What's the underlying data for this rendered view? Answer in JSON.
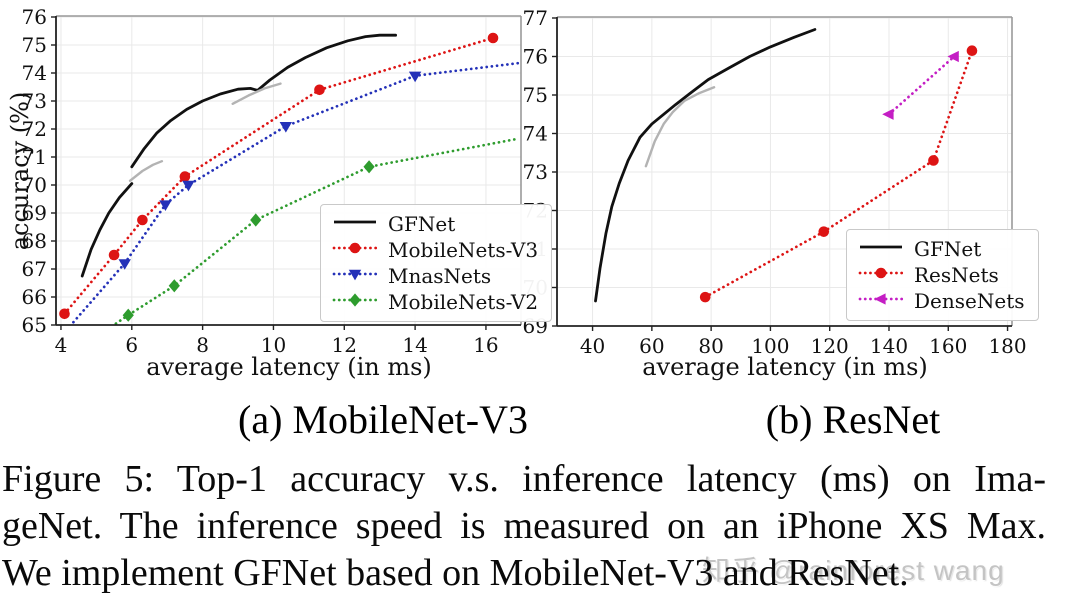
{
  "watermark": {
    "text": "知乎 @rainforest wang",
    "color": "#c4c4c4"
  },
  "caption": {
    "lines": [
      "Figure 5:  Top-1 accuracy v.s. inference latency (ms) on Ima-",
      "geNet. The inference speed is measured on an iPhone XS Max.",
      "We implement GFNet based on MobileNet-V3 and ResNet."
    ]
  },
  "chart_data": [
    {
      "type": "line",
      "title": "(a) MobileNet-V3",
      "xlabel": "average latency (in ms)",
      "ylabel": "accuracy (%)",
      "xlim": [
        3.86,
        16.99
      ],
      "ylim": [
        65,
        76
      ],
      "xticks": [
        4,
        6,
        8,
        10,
        12,
        14,
        16
      ],
      "yticks": [
        65,
        66,
        67,
        68,
        69,
        70,
        71,
        72,
        73,
        74,
        75,
        76
      ],
      "grid": true,
      "legend_position": "lower right",
      "series": [
        {
          "name": "GFNet",
          "color": "#111111",
          "line": "solid",
          "width": 2.8,
          "marker": "none",
          "in_legend": true,
          "segments": [
            [
              [
                4.6,
                66.75
              ],
              [
                4.85,
                67.7
              ],
              [
                5.1,
                68.4
              ],
              [
                5.35,
                69.0
              ],
              [
                5.65,
                69.55
              ],
              [
                6.0,
                70.05
              ]
            ],
            [
              [
                6.0,
                70.65
              ],
              [
                6.35,
                71.3
              ],
              [
                6.7,
                71.85
              ],
              [
                7.1,
                72.3
              ],
              [
                7.55,
                72.7
              ],
              [
                8.0,
                73.0
              ],
              [
                8.5,
                73.25
              ],
              [
                9.0,
                73.42
              ],
              [
                9.35,
                73.45
              ],
              [
                9.55,
                73.38
              ],
              [
                9.9,
                73.75
              ],
              [
                10.4,
                74.2
              ],
              [
                10.9,
                74.55
              ],
              [
                11.5,
                74.9
              ],
              [
                12.1,
                75.15
              ],
              [
                12.6,
                75.3
              ],
              [
                13.0,
                75.35
              ],
              [
                13.45,
                75.35
              ]
            ]
          ],
          "markers": []
        },
        {
          "name": "unlabeled-gray-curve",
          "color": "#b3b3b3",
          "line": "solid",
          "width": 2.4,
          "marker": "none",
          "in_legend": false,
          "segments": [
            [
              [
                5.95,
                70.15
              ],
              [
                6.3,
                70.5
              ],
              [
                6.6,
                70.72
              ],
              [
                6.85,
                70.85
              ]
            ],
            [
              [
                8.85,
                72.9
              ],
              [
                9.3,
                73.2
              ],
              [
                9.75,
                73.45
              ],
              [
                10.2,
                73.62
              ]
            ]
          ],
          "markers": []
        },
        {
          "name": "MobileNets-V3",
          "color": "#dd1414",
          "line": "dotted",
          "width": 2.7,
          "marker": "circle",
          "in_legend": true,
          "segments": [
            [
              [
                4.1,
                65.4
              ],
              [
                5.5,
                67.5
              ],
              [
                6.3,
                68.75
              ],
              [
                7.5,
                70.3
              ],
              [
                11.3,
                73.4
              ],
              [
                16.2,
                75.25
              ]
            ]
          ],
          "markers": [
            [
              4.1,
              65.4
            ],
            [
              5.5,
              67.5
            ],
            [
              6.3,
              68.75
            ],
            [
              7.5,
              70.3
            ],
            [
              11.3,
              73.4
            ],
            [
              16.2,
              75.25
            ]
          ]
        },
        {
          "name": "MnasNets",
          "color": "#2431b8",
          "line": "dotted",
          "width": 2.7,
          "marker": "triangle-down",
          "in_legend": true,
          "segments": [
            [
              [
                4.35,
                65.1
              ],
              [
                5.8,
                67.2
              ],
              [
                6.95,
                69.3
              ],
              [
                7.6,
                70.0
              ],
              [
                10.35,
                72.1
              ],
              [
                14.0,
                73.9
              ],
              [
                16.9,
                74.35
              ]
            ]
          ],
          "markers": [
            [
              5.8,
              67.2
            ],
            [
              6.95,
              69.3
            ],
            [
              7.6,
              70.0
            ],
            [
              10.35,
              72.1
            ],
            [
              14.0,
              73.9
            ]
          ]
        },
        {
          "name": "MobileNets-V2",
          "color": "#2e9c2e",
          "line": "dotted",
          "width": 2.7,
          "marker": "diamond",
          "in_legend": true,
          "segments": [
            [
              [
                5.55,
                65.05
              ],
              [
                5.9,
                65.35
              ],
              [
                7.2,
                66.4
              ],
              [
                9.5,
                68.75
              ],
              [
                12.7,
                70.65
              ],
              [
                16.9,
                71.65
              ]
            ]
          ],
          "markers": [
            [
              5.9,
              65.35
            ],
            [
              7.2,
              66.4
            ],
            [
              9.5,
              68.75
            ],
            [
              12.7,
              70.65
            ]
          ]
        }
      ]
    },
    {
      "type": "line",
      "title": "(b) ResNet",
      "xlabel": "average latency (in ms)",
      "ylabel": "",
      "xlim": [
        28,
        181.5
      ],
      "ylim": [
        69,
        77
      ],
      "xticks": [
        40,
        60,
        80,
        100,
        120,
        140,
        160,
        180
      ],
      "yticks": [
        69,
        70,
        71,
        72,
        73,
        74,
        75,
        76,
        77
      ],
      "grid": true,
      "legend_position": "lower right",
      "series": [
        {
          "name": "GFNet",
          "color": "#111111",
          "line": "solid",
          "width": 2.8,
          "marker": "none",
          "in_legend": true,
          "segments": [
            [
              [
                41,
                69.65
              ],
              [
                42.5,
                70.5
              ],
              [
                44.5,
                71.4
              ],
              [
                46.5,
                72.1
              ],
              [
                49,
                72.7
              ],
              [
                52,
                73.3
              ],
              [
                56,
                73.9
              ],
              [
                60,
                74.25
              ],
              [
                64,
                74.5
              ],
              [
                68,
                74.75
              ],
              [
                73,
                75.05
              ],
              [
                79,
                75.4
              ],
              [
                86,
                75.7
              ],
              [
                93,
                76.0
              ],
              [
                100,
                76.25
              ],
              [
                108,
                76.5
              ],
              [
                115,
                76.7
              ]
            ]
          ],
          "markers": []
        },
        {
          "name": "unlabeled-gray-curve",
          "color": "#b3b3b3",
          "line": "solid",
          "width": 2.4,
          "marker": "none",
          "in_legend": false,
          "segments": [
            [
              [
                58,
                73.15
              ],
              [
                61,
                73.8
              ],
              [
                64,
                74.25
              ],
              [
                67,
                74.55
              ],
              [
                71,
                74.85
              ],
              [
                76,
                75.05
              ],
              [
                81,
                75.2
              ]
            ]
          ],
          "markers": []
        },
        {
          "name": "ResNets",
          "color": "#dd1414",
          "line": "dotted",
          "width": 2.7,
          "marker": "circle",
          "in_legend": true,
          "segments": [
            [
              [
                78,
                69.75
              ],
              [
                118,
                71.45
              ],
              [
                155,
                73.3
              ],
              [
                168,
                76.15
              ]
            ]
          ],
          "markers": [
            [
              78,
              69.75
            ],
            [
              118,
              71.45
            ],
            [
              155,
              73.3
            ],
            [
              168,
              76.15
            ]
          ]
        },
        {
          "name": "DenseNets",
          "color": "#c41ec4",
          "line": "dotted",
          "width": 2.7,
          "marker": "triangle-left",
          "in_legend": true,
          "segments": [
            [
              [
                140,
                74.5
              ],
              [
                162,
                76.0
              ]
            ]
          ],
          "markers": [
            [
              140,
              74.5
            ],
            [
              162,
              76.0
            ]
          ]
        }
      ]
    }
  ]
}
